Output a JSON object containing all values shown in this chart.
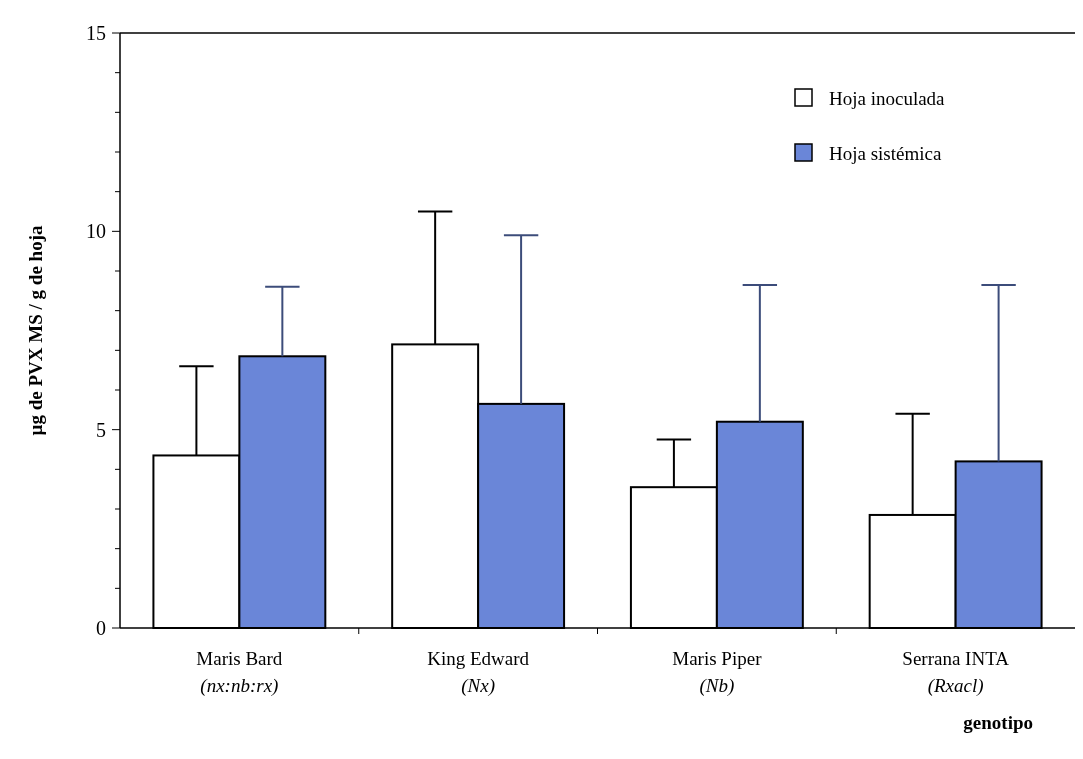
{
  "chart_data": {
    "type": "bar",
    "ylabel": "µg de PVX MS / g de hoja",
    "xlabel": "genotipo",
    "categories": [
      "Maris Bard\n(nx:nb:rx)",
      "King Edward\n(Nx)",
      "Maris Piper\n(Nb)",
      "Serrana INTA\n(Rxacl)"
    ],
    "series": [
      {
        "name": "Hoja inoculada",
        "color": "#ffffff",
        "values": [
          4.35,
          7.15,
          3.55,
          2.85
        ],
        "errors": [
          [
            4.35,
            6.6
          ],
          [
            7.15,
            10.5
          ],
          [
            3.55,
            4.75
          ],
          [
            2.85,
            5.4
          ]
        ]
      },
      {
        "name": "Hoja sistémica",
        "color": "#6a86d8",
        "values": [
          6.85,
          5.65,
          5.2,
          4.2
        ],
        "errors": [
          [
            6.85,
            8.6
          ],
          [
            5.65,
            9.9
          ],
          [
            5.2,
            8.65
          ],
          [
            4.2,
            8.65
          ]
        ]
      }
    ],
    "ylim": [
      0,
      15
    ],
    "yticks": [
      0,
      {
        "value": 1,
        "label": null
      },
      {
        "value": 2,
        "label": null
      },
      {
        "value": 3,
        "label": null
      },
      {
        "value": 4,
        "label": null
      },
      5,
      {
        "value": 6,
        "label": null
      },
      {
        "value": 7,
        "label": null
      },
      {
        "value": 8,
        "label": null
      },
      {
        "value": 9,
        "label": null
      },
      10,
      {
        "value": 11,
        "label": null
      },
      {
        "value": 12,
        "label": null
      },
      {
        "value": 13,
        "label": null
      },
      {
        "value": 14,
        "label": null
      },
      15
    ],
    "grid": false,
    "legend": "top right"
  }
}
